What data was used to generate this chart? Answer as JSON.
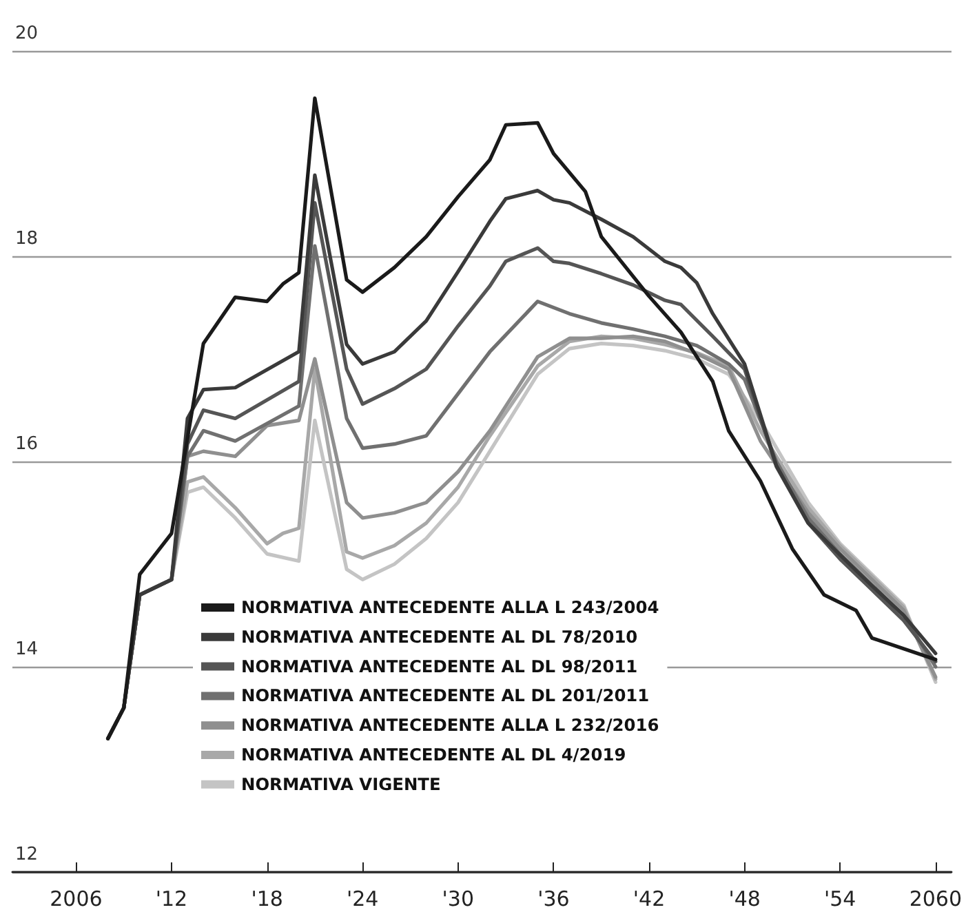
{
  "chart_data": {
    "type": "line",
    "xlim": [
      2002,
      2061
    ],
    "ylim": [
      12,
      20
    ],
    "xticks": [
      2006,
      {
        "value": 2012,
        "label": "'12"
      },
      {
        "value": 2018,
        "label": "'18"
      },
      {
        "value": 2024,
        "label": "'24"
      },
      {
        "value": 2030,
        "label": "'30"
      },
      {
        "value": 2036,
        "label": "'36"
      },
      {
        "value": 2042,
        "label": "'42"
      },
      {
        "value": 2048,
        "label": "'48"
      },
      {
        "value": 2054,
        "label": "'54"
      },
      2060
    ],
    "yticks": [
      12,
      14,
      16,
      18,
      20
    ],
    "grid": "y",
    "legend": "bottom left",
    "marker": "none",
    "line_style": "solid",
    "series": [
      {
        "name": "NORMATIVA ANTECEDENTE ALLA L 243/2004",
        "color": "#1a1a1a",
        "x": [
          2008,
          2009,
          2010,
          2012,
          2014,
          2016,
          2018,
          2019,
          2020,
          2021,
          2023,
          2024,
          2026,
          2028,
          2030,
          2032,
          2033,
          2035,
          2036,
          2038,
          2039,
          2042,
          2044,
          2046,
          2047,
          2049,
          2051,
          2053,
          2055,
          2056,
          2060
        ],
        "values": [
          13.3,
          13.6,
          14.9,
          15.3,
          17.15,
          17.6,
          17.56,
          17.73,
          17.84,
          19.54,
          17.77,
          17.65,
          17.89,
          18.19,
          18.58,
          18.94,
          19.28,
          19.3,
          19.0,
          18.63,
          18.19,
          17.61,
          17.26,
          16.78,
          16.3,
          15.81,
          15.15,
          14.7,
          14.55,
          14.28,
          14.07
        ]
      },
      {
        "name": "NORMATIVA ANTECEDENTE AL DL 78/2010",
        "color": "#3a3a3a",
        "x": [
          2008,
          2009,
          2010,
          2012,
          2013,
          2014,
          2016,
          2020,
          2021,
          2023,
          2024,
          2026,
          2028,
          2030,
          2032,
          2033,
          2035,
          2036,
          2037,
          2039,
          2041,
          2043,
          2044,
          2045,
          2046,
          2048,
          2050,
          2052,
          2054,
          2056,
          2058,
          2060
        ],
        "values": [
          13.3,
          13.6,
          14.7,
          14.85,
          16.42,
          16.7,
          16.72,
          17.07,
          18.79,
          17.14,
          16.95,
          17.07,
          17.37,
          17.85,
          18.34,
          18.56,
          18.64,
          18.55,
          18.52,
          18.36,
          18.19,
          17.95,
          17.89,
          17.74,
          17.44,
          16.95,
          15.96,
          15.4,
          15.09,
          14.79,
          14.5,
          14.13
        ]
      },
      {
        "name": "NORMATIVA ANTECEDENTE AL DL 98/2011",
        "color": "#555555",
        "x": [
          2008,
          2009,
          2010,
          2012,
          2013,
          2014,
          2016,
          2020,
          2021,
          2023,
          2024,
          2026,
          2028,
          2030,
          2032,
          2033,
          2035,
          2036,
          2037,
          2039,
          2041,
          2043,
          2044,
          2046,
          2048,
          2050,
          2052,
          2054,
          2056,
          2058,
          2060
        ],
        "values": [
          13.3,
          13.6,
          14.7,
          14.85,
          16.17,
          16.5,
          16.42,
          16.78,
          18.52,
          16.9,
          16.56,
          16.71,
          16.9,
          17.32,
          17.71,
          17.95,
          18.08,
          17.95,
          17.93,
          17.83,
          17.72,
          17.57,
          17.53,
          17.22,
          16.9,
          15.95,
          15.4,
          15.05,
          14.75,
          14.45,
          14.05
        ]
      },
      {
        "name": "NORMATIVA ANTECEDENTE AL DL 201/2011",
        "color": "#707070",
        "x": [
          2008,
          2009,
          2010,
          2012,
          2013,
          2014,
          2016,
          2020,
          2021,
          2023,
          2024,
          2026,
          2028,
          2030,
          2032,
          2035,
          2037,
          2039,
          2041,
          2043,
          2045,
          2047,
          2048,
          2050,
          2052,
          2054,
          2056,
          2058,
          2060
        ],
        "values": [
          13.3,
          13.6,
          14.7,
          14.85,
          16.05,
          16.3,
          16.2,
          16.54,
          18.1,
          16.42,
          16.13,
          16.17,
          16.25,
          16.66,
          17.07,
          17.56,
          17.44,
          17.35,
          17.29,
          17.22,
          17.13,
          16.95,
          16.8,
          16.0,
          15.45,
          15.1,
          14.8,
          14.5,
          14.0
        ]
      },
      {
        "name": "NORMATIVA ANTECEDENTE ALLA L 232/2016",
        "color": "#8f8f8f",
        "x": [
          2008,
          2009,
          2010,
          2012,
          2013,
          2014,
          2016,
          2018,
          2020,
          2021,
          2023,
          2024,
          2026,
          2028,
          2030,
          2032,
          2035,
          2037,
          2039,
          2041,
          2043,
          2045,
          2047,
          2049,
          2052,
          2054,
          2056,
          2058,
          2060
        ],
        "values": [
          13.3,
          13.6,
          14.7,
          14.85,
          16.05,
          16.1,
          16.05,
          16.35,
          16.4,
          17.0,
          15.6,
          15.45,
          15.5,
          15.6,
          15.9,
          16.3,
          17.02,
          17.2,
          17.2,
          17.22,
          17.17,
          17.05,
          16.9,
          16.2,
          15.5,
          15.15,
          14.85,
          14.55,
          13.9
        ]
      },
      {
        "name": "NORMATIVA ANTECEDENTE AL DL 4/2019",
        "color": "#a8a8a8",
        "x": [
          2008,
          2009,
          2010,
          2012,
          2013,
          2014,
          2016,
          2018,
          2019,
          2020,
          2021,
          2023,
          2024,
          2026,
          2028,
          2030,
          2032,
          2035,
          2037,
          2039,
          2041,
          2043,
          2045,
          2047,
          2049,
          2052,
          2054,
          2056,
          2058,
          2060
        ],
        "values": [
          13.3,
          13.6,
          14.7,
          14.85,
          15.8,
          15.85,
          15.55,
          15.2,
          15.3,
          15.35,
          16.9,
          15.12,
          15.06,
          15.18,
          15.4,
          15.75,
          16.25,
          16.93,
          17.17,
          17.22,
          17.2,
          17.14,
          17.06,
          16.93,
          16.3,
          15.55,
          15.18,
          14.88,
          14.58,
          13.88
        ]
      },
      {
        "name": "NORMATIVA VIGENTE",
        "color": "#c4c4c4",
        "x": [
          2008,
          2009,
          2010,
          2012,
          2013,
          2014,
          2016,
          2018,
          2020,
          2021,
          2023,
          2024,
          2026,
          2028,
          2030,
          2032,
          2034,
          2035,
          2037,
          2039,
          2041,
          2043,
          2045,
          2047,
          2049,
          2052,
          2054,
          2056,
          2058,
          2060
        ],
        "values": [
          13.3,
          13.6,
          14.7,
          14.85,
          15.7,
          15.75,
          15.45,
          15.1,
          15.03,
          16.4,
          14.95,
          14.85,
          15.0,
          15.25,
          15.6,
          16.1,
          16.6,
          16.85,
          17.1,
          17.15,
          17.13,
          17.08,
          17.0,
          16.85,
          16.4,
          15.6,
          15.2,
          14.9,
          14.6,
          13.85
        ]
      }
    ]
  }
}
